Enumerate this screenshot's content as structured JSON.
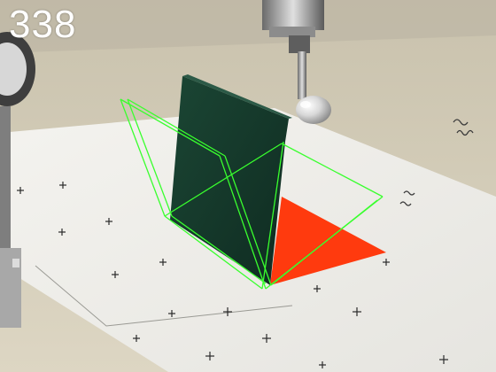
{
  "overlay": {
    "frame_counter": "338"
  },
  "colors": {
    "table": "#d9d2bf",
    "paper": "#f1f0ec",
    "dark_panel": "#14372a",
    "red_panel": "#ff3a0e",
    "wireframe": "#39ff2e",
    "marks": "#2b2b2b"
  }
}
